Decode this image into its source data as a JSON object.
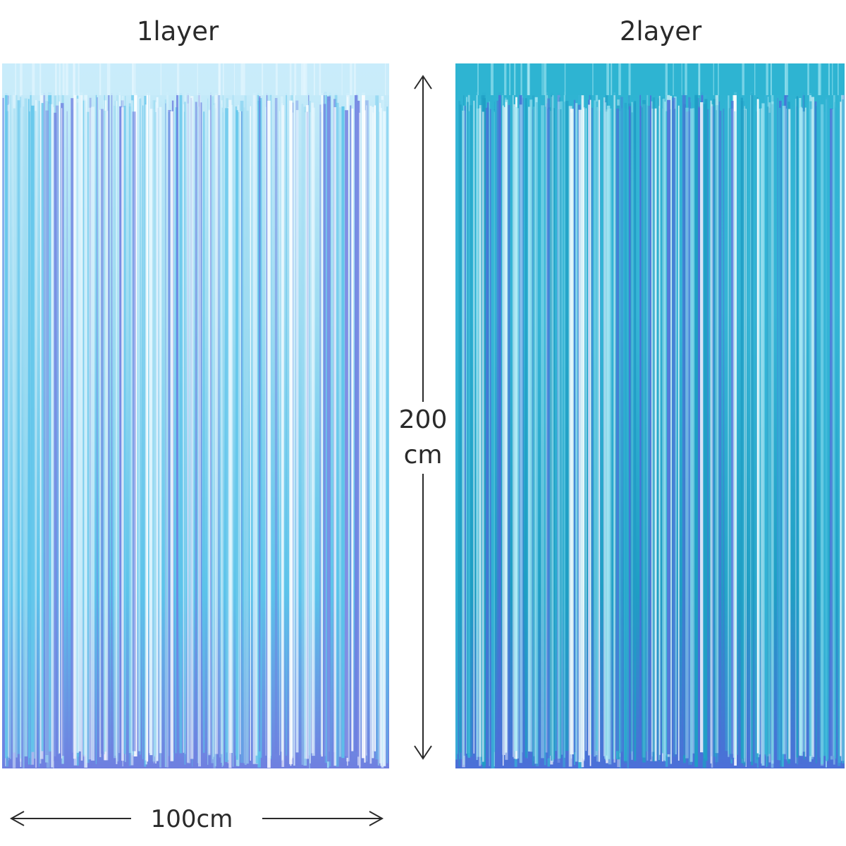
{
  "panels": [
    {
      "label": "1layer",
      "colors": {
        "base": "#9fdcf2",
        "light": "#e8f8ff",
        "mid": "#5cc3ea",
        "violet": "#6f7fe0",
        "header": "#c9ecfa"
      }
    },
    {
      "label": "2layer",
      "colors": {
        "base": "#36b5d6",
        "light": "#a6e7f4",
        "mid": "#1f9ec4",
        "violet": "#4c6fd8",
        "header": "#2eb4d2"
      }
    }
  ],
  "dimensions": {
    "width_label": "100cm",
    "height_value": "200",
    "height_unit": "cm"
  }
}
